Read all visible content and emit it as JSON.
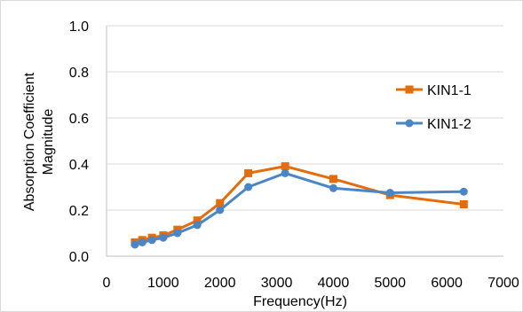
{
  "chart_data": {
    "type": "line",
    "title": "",
    "xlabel": "Frequency(Hz)",
    "ylabel_lines": [
      "Absorption Coefficient",
      "Magnitude"
    ],
    "xlim": [
      0,
      7000
    ],
    "ylim": [
      0,
      1.0
    ],
    "x_ticks": [
      0,
      1000,
      2000,
      3000,
      4000,
      5000,
      6000,
      7000
    ],
    "x_tick_labels": [
      "0",
      "1000",
      "2000",
      "3000",
      "4000",
      "5000",
      "6000",
      "7000"
    ],
    "y_ticks": [
      0,
      0.2,
      0.4,
      0.6,
      0.8,
      1.0
    ],
    "y_tick_labels": [
      "0.0",
      "0.2",
      "0.4",
      "0.6",
      "0.8",
      "1.0"
    ],
    "grid": "horizontal",
    "legend_position": "right",
    "series": [
      {
        "name": "KIN1-1",
        "color": "#E46C0A",
        "marker": "square",
        "x": [
          500,
          630,
          800,
          1000,
          1250,
          1600,
          2000,
          2500,
          3150,
          4000,
          5000,
          6300
        ],
        "y": [
          0.06,
          0.07,
          0.08,
          0.09,
          0.115,
          0.155,
          0.23,
          0.36,
          0.39,
          0.335,
          0.265,
          0.225
        ]
      },
      {
        "name": "KIN1-2",
        "color": "#4A86C5",
        "marker": "circle",
        "x": [
          500,
          630,
          800,
          1000,
          1250,
          1600,
          2000,
          2500,
          3150,
          4000,
          5000,
          6300
        ],
        "y": [
          0.05,
          0.06,
          0.07,
          0.08,
          0.1,
          0.135,
          0.2,
          0.3,
          0.36,
          0.295,
          0.275,
          0.28
        ]
      }
    ]
  }
}
